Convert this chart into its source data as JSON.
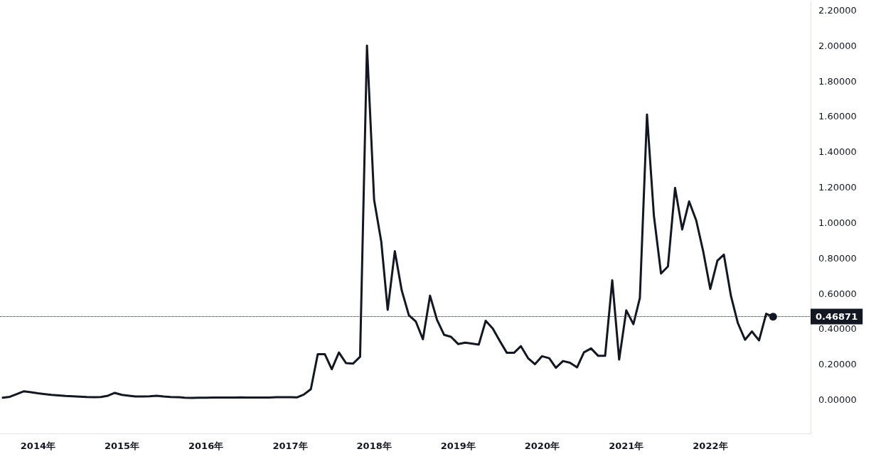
{
  "chart_data": {
    "type": "line",
    "color": "#131722",
    "line_style": "solid",
    "grid": false,
    "x": [
      "2013-08",
      "2013-09",
      "2013-10",
      "2013-11",
      "2013-12",
      "2014-01",
      "2014-02",
      "2014-03",
      "2014-04",
      "2014-05",
      "2014-06",
      "2014-07",
      "2014-08",
      "2014-09",
      "2014-10",
      "2014-11",
      "2014-12",
      "2015-01",
      "2015-02",
      "2015-03",
      "2015-04",
      "2015-05",
      "2015-06",
      "2015-07",
      "2015-08",
      "2015-09",
      "2015-10",
      "2015-11",
      "2015-12",
      "2016-01",
      "2016-02",
      "2016-03",
      "2016-04",
      "2016-05",
      "2016-06",
      "2016-07",
      "2016-08",
      "2016-09",
      "2016-10",
      "2016-11",
      "2016-12",
      "2017-01",
      "2017-02",
      "2017-03",
      "2017-04",
      "2017-05",
      "2017-06",
      "2017-07",
      "2017-08",
      "2017-09",
      "2017-10",
      "2017-11",
      "2017-12",
      "2018-01",
      "2018-02",
      "2018-03",
      "2018-04",
      "2018-05",
      "2018-06",
      "2018-07",
      "2018-08",
      "2018-09",
      "2018-10",
      "2018-11",
      "2018-12",
      "2019-01",
      "2019-02",
      "2019-03",
      "2019-04",
      "2019-05",
      "2019-06",
      "2019-07",
      "2019-08",
      "2019-09",
      "2019-10",
      "2019-11",
      "2019-12",
      "2020-01",
      "2020-02",
      "2020-03",
      "2020-04",
      "2020-05",
      "2020-06",
      "2020-07",
      "2020-08",
      "2020-09",
      "2020-10",
      "2020-11",
      "2020-12",
      "2021-01",
      "2021-02",
      "2021-03",
      "2021-04",
      "2021-05",
      "2021-06",
      "2021-07",
      "2021-08",
      "2021-09",
      "2021-10",
      "2021-11",
      "2021-12",
      "2022-01",
      "2022-02",
      "2022-03",
      "2022-04",
      "2022-05",
      "2022-06",
      "2022-07",
      "2022-08",
      "2022-09",
      "2022-10"
    ],
    "values": [
      0.012,
      0.017,
      0.032,
      0.048,
      0.043,
      0.037,
      0.032,
      0.028,
      0.025,
      0.022,
      0.02,
      0.018,
      0.016,
      0.015,
      0.016,
      0.023,
      0.039,
      0.028,
      0.023,
      0.019,
      0.019,
      0.02,
      0.023,
      0.019,
      0.016,
      0.015,
      0.012,
      0.011,
      0.012,
      0.012,
      0.013,
      0.013,
      0.013,
      0.013,
      0.014,
      0.013,
      0.013,
      0.013,
      0.013,
      0.015,
      0.015,
      0.015,
      0.014,
      0.029,
      0.06,
      0.257,
      0.257,
      0.173,
      0.267,
      0.207,
      0.204,
      0.243,
      2.0,
      1.129,
      0.894,
      0.508,
      0.839,
      0.618,
      0.478,
      0.443,
      0.342,
      0.588,
      0.453,
      0.367,
      0.356,
      0.315,
      0.323,
      0.318,
      0.312,
      0.446,
      0.402,
      0.333,
      0.265,
      0.265,
      0.303,
      0.235,
      0.201,
      0.246,
      0.235,
      0.181,
      0.219,
      0.209,
      0.183,
      0.268,
      0.29,
      0.248,
      0.248,
      0.675,
      0.227,
      0.505,
      0.427,
      0.575,
      1.611,
      1.04,
      0.713,
      0.753,
      1.197,
      0.962,
      1.12,
      1.013,
      0.84,
      0.626,
      0.786,
      0.82,
      0.586,
      0.433,
      0.339,
      0.386,
      0.335,
      0.486,
      0.469
    ],
    "xlim": [
      "2013-07-20",
      "2023-03-13"
    ],
    "xticks": [
      {
        "value": "2014",
        "label": "2014年"
      },
      {
        "value": "2015",
        "label": "2015年"
      },
      {
        "value": "2016",
        "label": "2016年"
      },
      {
        "value": "2017",
        "label": "2017年"
      },
      {
        "value": "2018",
        "label": "2018年"
      },
      {
        "value": "2019",
        "label": "2019年"
      },
      {
        "value": "2020",
        "label": "2020年"
      },
      {
        "value": "2021",
        "label": "2021年"
      },
      {
        "value": "2022",
        "label": "2022年"
      }
    ],
    "ylim": [
      -0.19,
      2.25
    ],
    "yticks": [
      {
        "value": 0,
        "label": "0.00000"
      },
      {
        "value": 0.2,
        "label": "0.20000"
      },
      {
        "value": 0.4,
        "label": "0.40000"
      },
      {
        "value": 0.6,
        "label": "0.60000"
      },
      {
        "value": 0.8,
        "label": "0.80000"
      },
      {
        "value": 1,
        "label": "1.00000"
      },
      {
        "value": 1.2,
        "label": "1.20000"
      },
      {
        "value": 1.4,
        "label": "1.40000"
      },
      {
        "value": 1.6,
        "label": "1.60000"
      },
      {
        "value": 1.8,
        "label": "1.80000"
      },
      {
        "value": 2,
        "label": "2.00000"
      },
      {
        "value": 2.2,
        "label": "2.20000"
      }
    ],
    "ref_lines": [
      {
        "axis": "y",
        "value": 0.46871,
        "label": "0.46871",
        "color": "#131722",
        "line_style": "dotted"
      }
    ]
  }
}
